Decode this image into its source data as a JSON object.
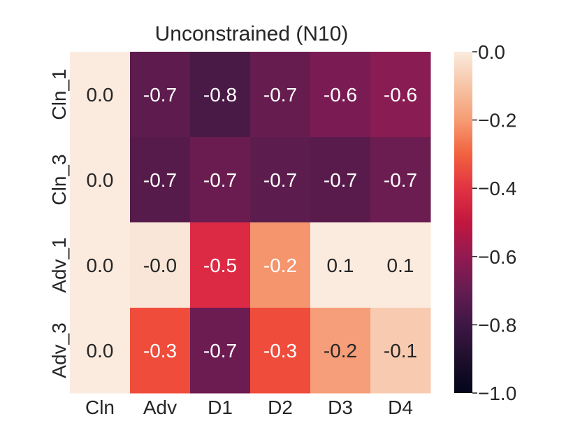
{
  "chart_data": {
    "type": "heatmap",
    "title": "Unconstrained (N10)",
    "x_labels": [
      "Cln",
      "Adv",
      "D1",
      "D2",
      "D3",
      "D4"
    ],
    "y_labels": [
      "Cln_1",
      "Cln_3",
      "Adv_1",
      "Adv_3"
    ],
    "values": [
      [
        0.0,
        -0.7,
        -0.8,
        -0.7,
        -0.6,
        -0.6
      ],
      [
        0.0,
        -0.7,
        -0.7,
        -0.7,
        -0.7,
        -0.7
      ],
      [
        0.0,
        -0.0,
        -0.5,
        -0.2,
        0.1,
        0.1
      ],
      [
        0.0,
        -0.3,
        -0.7,
        -0.3,
        -0.2,
        -0.1
      ]
    ],
    "colors": [
      [
        "#fbebdf",
        "#5d1c4d",
        "#4a1a46",
        "#671c4f",
        "#7a1c53",
        "#8a1c54"
      ],
      [
        "#fbebdf",
        "#561b4b",
        "#6a1c50",
        "#5c1c4d",
        "#591b4b",
        "#6b1c50"
      ],
      [
        "#fbebdf",
        "#fae6d8",
        "#dd2a44",
        "#f4956d",
        "#fbebdf",
        "#fbebdf"
      ],
      [
        "#fbebdf",
        "#f04c3b",
        "#6d1c51",
        "#f04c3b",
        "#f69e79",
        "#f8cbb0"
      ]
    ],
    "dark_text_cells": [
      [
        0,
        0
      ],
      [
        1,
        0
      ],
      [
        2,
        0
      ],
      [
        2,
        1
      ],
      [
        2,
        4
      ],
      [
        2,
        5
      ],
      [
        3,
        0
      ],
      [
        3,
        4
      ],
      [
        3,
        5
      ]
    ],
    "colorbar": {
      "range": [
        -1.0,
        0.0
      ],
      "ticks": [
        "0.0",
        "−0.2",
        "−0.4",
        "−0.6",
        "−0.8",
        "−1.0"
      ],
      "tick_values": [
        0.0,
        -0.2,
        -0.4,
        -0.6,
        -0.8,
        -1.0
      ],
      "stops": [
        {
          "v": 0.0,
          "color": "#faebdd"
        },
        {
          "v": -0.1,
          "color": "#f6c4a6"
        },
        {
          "v": -0.2,
          "color": "#f69c73"
        },
        {
          "v": -0.3,
          "color": "#f1623f"
        },
        {
          "v": -0.4,
          "color": "#e13342"
        },
        {
          "v": -0.5,
          "color": "#c1173f"
        },
        {
          "v": -0.6,
          "color": "#921a51"
        },
        {
          "v": -0.7,
          "color": "#651c51"
        },
        {
          "v": -0.8,
          "color": "#3d1745"
        },
        {
          "v": -0.9,
          "color": "#1e0f2c"
        },
        {
          "v": -1.0,
          "color": "#03051a"
        }
      ]
    }
  }
}
